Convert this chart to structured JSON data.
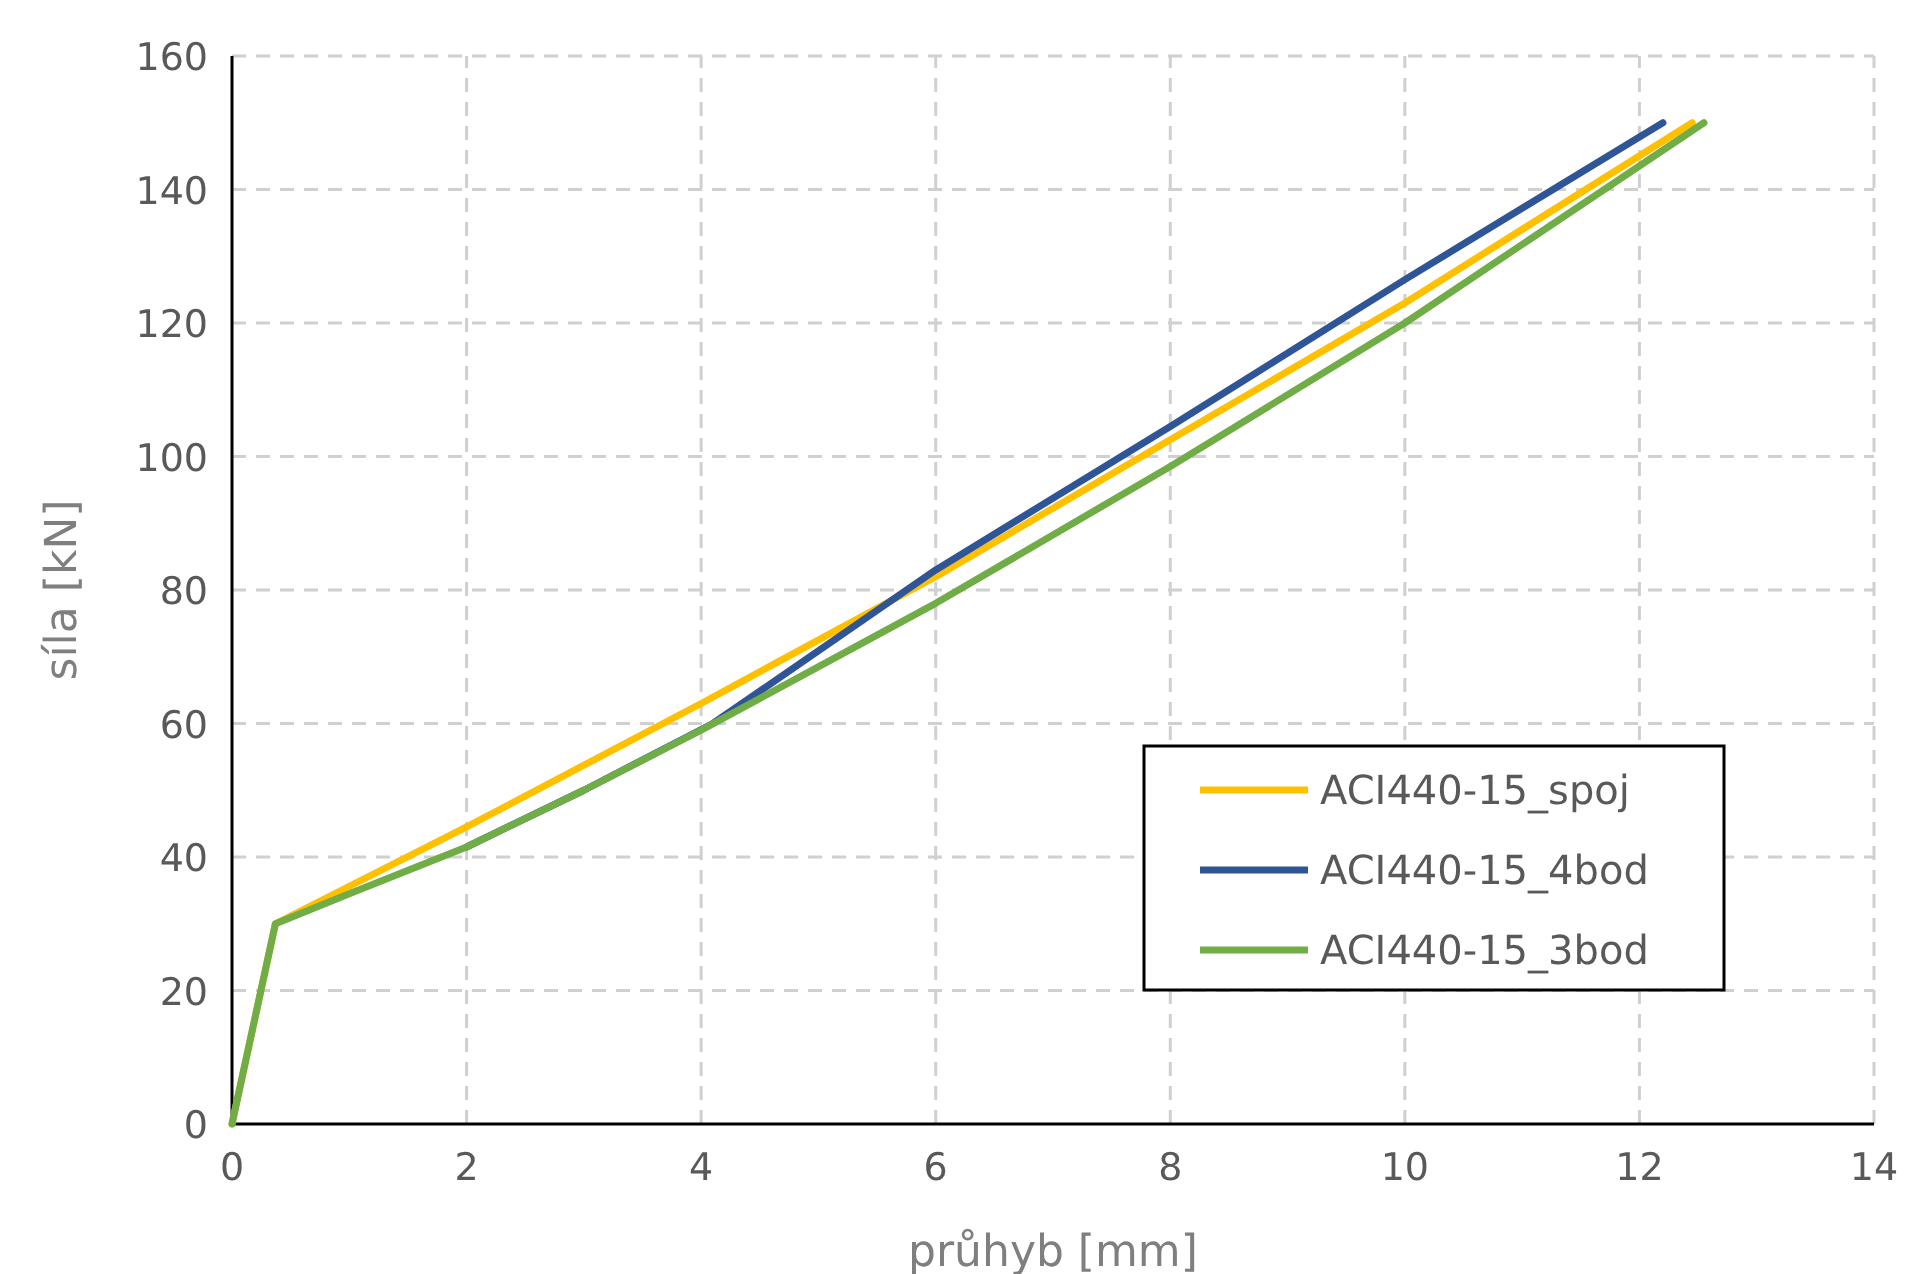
{
  "chart_data": {
    "type": "line",
    "xlabel": "průhyb [mm]",
    "ylabel": "síla [kN]",
    "xlim": [
      0,
      14
    ],
    "xticks": [
      0,
      2,
      4,
      6,
      8,
      10,
      12,
      14
    ],
    "ylim": [
      0,
      160
    ],
    "yticks": [
      0,
      20,
      40,
      60,
      80,
      100,
      120,
      140,
      160
    ],
    "grid": true,
    "legend": "bottom right",
    "marker": "none",
    "line_style": "solid",
    "series": [
      {
        "name": "ACI440-15_spoj",
        "color": "#ffc000",
        "x": [
          0,
          0.37,
          2,
          4,
          6,
          8,
          10,
          12.45
        ],
        "values": [
          0,
          30,
          44.5,
          63,
          82,
          102.5,
          123,
          150
        ]
      },
      {
        "name": "ACI440-15_4bod",
        "color": "#2f5597",
        "x": [
          2,
          3,
          4.1,
          6,
          8,
          10,
          12.2
        ],
        "values": [
          41.5,
          50,
          60,
          83,
          104.5,
          126.5,
          150
        ]
      },
      {
        "name": "ACI440-15_3bod",
        "color": "#70ad47",
        "x": [
          0,
          0.37,
          1,
          2,
          3,
          4,
          6,
          8,
          10,
          12.55
        ],
        "values": [
          0,
          30,
          34.5,
          41.5,
          50,
          59,
          78,
          98.5,
          120,
          150
        ]
      }
    ]
  }
}
